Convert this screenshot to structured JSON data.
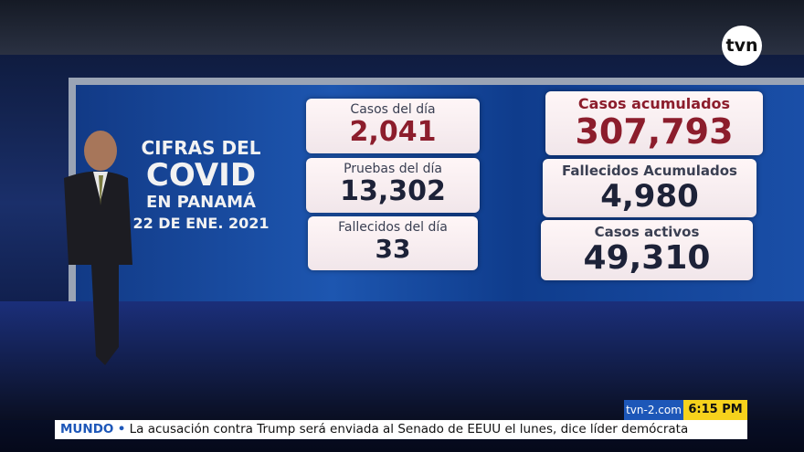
{
  "logo": "tvn",
  "graphic": {
    "title": [
      "CIFRAS DEL",
      "COVID",
      "EN PANAMÁ",
      "22 DE ENE. 2021"
    ],
    "cards": [
      {
        "label": "Casos del día",
        "value": "2,041"
      },
      {
        "label": "Pruebas del día",
        "value": "13,302"
      },
      {
        "label": "Fallecidos del día",
        "value": "33"
      },
      {
        "label": "Casos acumulados",
        "value": "307,793"
      },
      {
        "label": "Fallecidos Acumulados",
        "value": "4,980"
      },
      {
        "label": "Casos activos",
        "value": "49,310"
      }
    ]
  },
  "ticker": {
    "site": "tvn-2.com",
    "time": "6:15 PM",
    "section": "MUNDO",
    "headline": "La acusación contra Trump será enviada al Senado de EEUU el lunes, dice líder demócrata"
  }
}
